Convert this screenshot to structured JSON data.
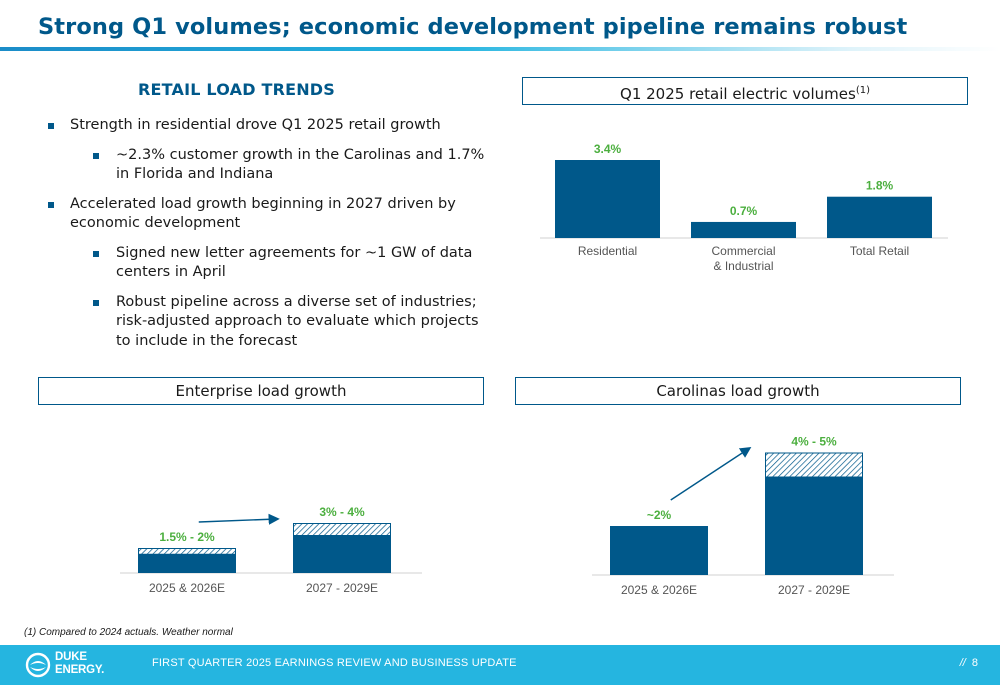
{
  "title": "Strong Q1 volumes; economic development pipeline remains robust",
  "section_heading": "RETAIL LOAD TRENDS",
  "bullets": [
    {
      "text": "Strength in residential drove Q1 2025 retail growth"
    },
    {
      "text": "~2.3% customer growth in the Carolinas and 1.7% in Florida and Indiana"
    },
    {
      "text": "Accelerated load growth beginning in 2027 driven by economic development"
    },
    {
      "text": "Signed new letter agreements for ~1 GW of data centers in April"
    },
    {
      "text": "Robust pipeline across a diverse set of industries; risk-adjusted approach to evaluate which projects to include in the forecast"
    }
  ],
  "box_labels": {
    "q1_title": "Q1 2025 retail electric volumes",
    "q1_sup": "(1)",
    "enterprise": "Enterprise load growth",
    "carolinas": "Carolinas load growth"
  },
  "colors": {
    "bar": "#00588a",
    "label": "#4caf3f",
    "accent": "#25b5e0"
  },
  "chart_data": [
    {
      "type": "bar",
      "title": "Q1 2025 retail electric volumes",
      "categories": [
        "Residential",
        "Commercial & Industrial",
        "Total Retail"
      ],
      "category_lines": [
        [
          "Residential"
        ],
        [
          "Commercial",
          "& Industrial"
        ],
        [
          "Total Retail"
        ]
      ],
      "values": [
        3.4,
        0.7,
        1.8
      ],
      "value_labels": [
        "3.4%",
        "0.7%",
        "1.8%"
      ],
      "unit": "%"
    },
    {
      "type": "bar",
      "title": "Enterprise load growth",
      "categories": [
        "2025 & 2026E",
        "2027 - 2029E"
      ],
      "series": [
        {
          "name": "low",
          "values": [
            1.5,
            3
          ]
        },
        {
          "name": "high",
          "values": [
            2,
            4
          ]
        }
      ],
      "value_labels": [
        "1.5% - 2%",
        "3% - 4%"
      ],
      "unit": "%"
    },
    {
      "type": "bar",
      "title": "Carolinas load growth",
      "categories": [
        "2025 & 2026E",
        "2027 - 2029E"
      ],
      "series": [
        {
          "name": "low",
          "values": [
            2,
            4
          ]
        },
        {
          "name": "high",
          "values": [
            2,
            5
          ]
        }
      ],
      "value_labels": [
        "~2%",
        "4% - 5%"
      ],
      "unit": "%"
    }
  ],
  "footnote": "(1)  Compared to 2024 actuals. Weather normal",
  "footer": {
    "text": "FIRST QUARTER 2025 EARNINGS REVIEW AND BUSINESS UPDATE",
    "page_marker": "//",
    "page": "8",
    "logo_line1": "DUKE",
    "logo_line2": "ENERGY."
  }
}
